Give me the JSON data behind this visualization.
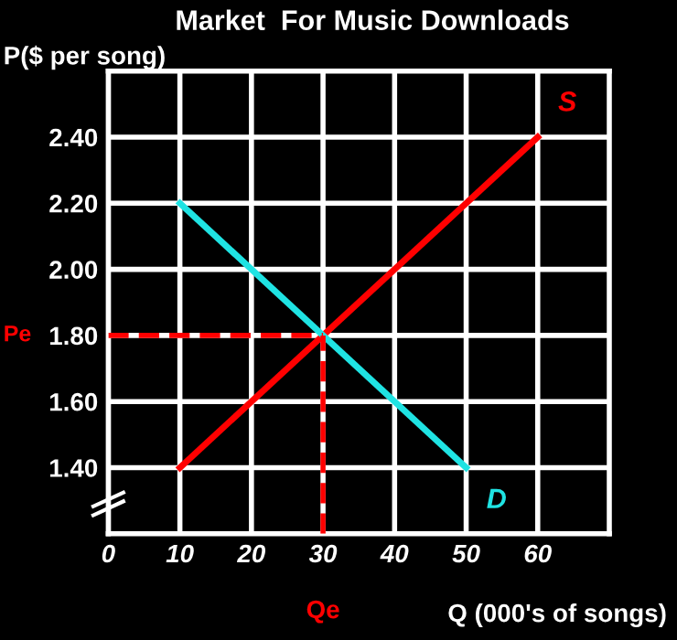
{
  "chart_data": {
    "type": "line",
    "title": "Market  For Music Downloads",
    "xlabel": "Q (000's of songs)",
    "ylabel": "P($ per song)",
    "series": [
      {
        "name": "S",
        "color": "#ff0000",
        "x": [
          10,
          60
        ],
        "values": [
          1.4,
          2.4
        ]
      },
      {
        "name": "D",
        "color": "#1fe3e3",
        "x": [
          10,
          50
        ],
        "values": [
          2.2,
          1.4
        ]
      }
    ],
    "xlim": [
      0,
      70
    ],
    "xticks": [
      0,
      10,
      20,
      30,
      40,
      50,
      60
    ],
    "ylim": [
      1.2,
      2.6
    ],
    "yticks": [
      {
        "value": 1.4,
        "label": "1.40"
      },
      {
        "value": 1.6,
        "label": "1.60"
      },
      {
        "value": 1.8,
        "label": "1.80"
      },
      {
        "value": 2.0,
        "label": "2.00"
      },
      {
        "value": 2.2,
        "label": "2.20"
      },
      {
        "value": 2.4,
        "label": "2.40"
      }
    ],
    "ref_lines": [
      {
        "axis": "y",
        "value": 1.8,
        "label": "Pe",
        "color": "#ff0000",
        "line_style": "dashed"
      },
      {
        "axis": "x",
        "value": 30,
        "label": "Qe",
        "color": "#ff0000",
        "line_style": "dashed"
      }
    ],
    "grid": true,
    "legend": false
  }
}
